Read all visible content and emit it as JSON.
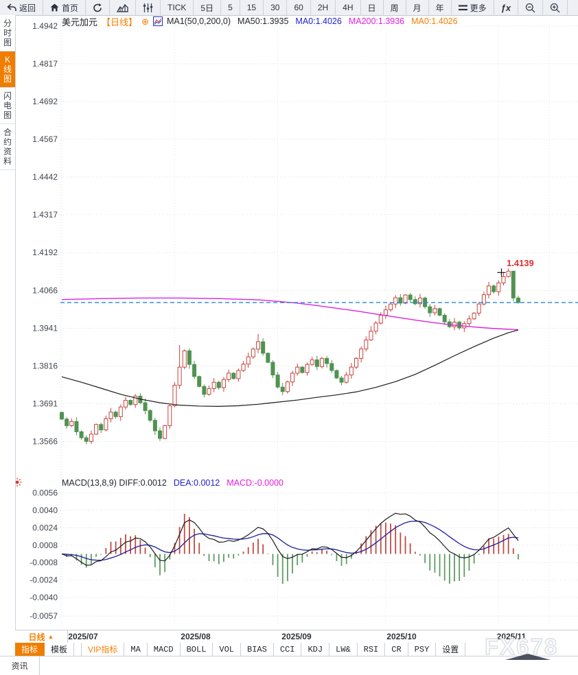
{
  "toolbar": {
    "items": [
      {
        "type": "icon-text",
        "icon": "back-icon",
        "label": "返回",
        "name": "back-button"
      },
      {
        "type": "icon-text",
        "icon": "home-icon",
        "label": "首页",
        "name": "home-button"
      },
      {
        "type": "icon",
        "icon": "refresh-icon",
        "name": "refresh-button"
      },
      {
        "type": "icon",
        "icon": "area-chart-icon",
        "name": "chart-type-line-button"
      },
      {
        "type": "icon",
        "icon": "candlestick-icon",
        "name": "chart-type-candle-button"
      },
      {
        "type": "text",
        "label": "TICK",
        "name": "period-tick-button"
      },
      {
        "type": "text",
        "label": "5日",
        "name": "period-5day-button"
      },
      {
        "type": "text",
        "label": "5",
        "name": "period-5min-button"
      },
      {
        "type": "text",
        "label": "15",
        "name": "period-15min-button"
      },
      {
        "type": "text",
        "label": "30",
        "name": "period-30min-button"
      },
      {
        "type": "text",
        "label": "60",
        "name": "period-60min-button"
      },
      {
        "type": "text",
        "label": "2H",
        "name": "period-2h-button"
      },
      {
        "type": "text",
        "label": "4H",
        "name": "period-4h-button"
      },
      {
        "type": "text",
        "label": "日",
        "name": "period-day-button"
      },
      {
        "type": "text",
        "label": "周",
        "name": "period-week-button"
      },
      {
        "type": "text",
        "label": "月",
        "name": "period-month-button"
      },
      {
        "type": "text",
        "label": "年",
        "name": "period-year-button"
      },
      {
        "type": "icon-text",
        "icon": "menu-icon",
        "label": "更多",
        "name": "more-button"
      },
      {
        "type": "icon",
        "icon": "fx-icon",
        "name": "fx-functions-button"
      },
      {
        "type": "icon",
        "icon": "zoom-out-icon",
        "name": "zoom-out-button"
      },
      {
        "type": "icon",
        "icon": "zoom-in-icon",
        "name": "zoom-in-button"
      }
    ]
  },
  "sidebar": {
    "items": [
      {
        "label": "分时图",
        "active": false,
        "name": "sidebar-item-time-chart"
      },
      {
        "label": "K线图",
        "active": true,
        "name": "sidebar-item-kline-chart"
      },
      {
        "label": "闪电图",
        "active": false,
        "name": "sidebar-item-lightning-chart"
      },
      {
        "label": "合约资料",
        "active": false,
        "name": "sidebar-item-contract-info"
      }
    ]
  },
  "chart_header": {
    "symbol": "美元加元",
    "period_tag": "【日线】",
    "plus_icon": "⊕",
    "ma_items": [
      {
        "label": "MA1(50,0,200,0)",
        "color": "#22262e"
      },
      {
        "label": "MA50:1.3935",
        "color": "#22262e"
      },
      {
        "label": "MA0:1.4026",
        "color": "#1d1dc9"
      },
      {
        "label": "MA200:1.3936",
        "color": "#e41ce4"
      },
      {
        "label": "MA0:1.4026",
        "color": "#f57f00"
      }
    ]
  },
  "indicator_header": {
    "items": [
      {
        "label": "MACD(13,8,9) DIFF:0.0012",
        "color": "#22262e"
      },
      {
        "label": "DEA:0.0012",
        "color": "#1d1dc9"
      },
      {
        "label": "MACD:-0.0000",
        "color": "#e41ce4"
      }
    ]
  },
  "price_label": "1.4139",
  "x_axis": {
    "period_selector": "日线",
    "arrow": "▲"
  },
  "bottom_tabs": [
    {
      "label": "指标",
      "style": "active",
      "name": "tab-indicator"
    },
    {
      "label": "模板",
      "style": "normal",
      "name": "tab-template"
    },
    {
      "label": "VIP指标",
      "style": "vip",
      "name": "tab-vip-indicator"
    },
    {
      "label": "MA",
      "style": "mono",
      "name": "tab-ma"
    },
    {
      "label": "MACD",
      "style": "mono",
      "name": "tab-macd"
    },
    {
      "label": "BOLL",
      "style": "mono",
      "name": "tab-boll"
    },
    {
      "label": "VOL",
      "style": "mono",
      "name": "tab-vol"
    },
    {
      "label": "BIAS",
      "style": "mono",
      "name": "tab-bias"
    },
    {
      "label": "CCI",
      "style": "mono",
      "name": "tab-cci"
    },
    {
      "label": "KDJ",
      "style": "mono",
      "name": "tab-kdj"
    },
    {
      "label": "LW&",
      "style": "mono",
      "name": "tab-lw"
    },
    {
      "label": "RSI",
      "style": "mono",
      "name": "tab-rsi"
    },
    {
      "label": "CR",
      "style": "mono",
      "name": "tab-cr"
    },
    {
      "label": "PSY",
      "style": "mono",
      "name": "tab-psy"
    },
    {
      "label": "设置",
      "style": "normal",
      "name": "tab-settings"
    }
  ],
  "watermark": "FX678",
  "status_bar": {
    "tab": "资讯"
  },
  "colors": {
    "accent_orange": "#f57f00",
    "up_red": "#c5433c",
    "down_green": "#4f9350",
    "macd_bar_red": "#bf4a42",
    "macd_bar_green": "#5d9b60",
    "ma50_black": "#1a1a1a",
    "ma200_magenta": "#dd22dd",
    "dea_blue": "#1b1b9e",
    "last_price_blue": "#2283dd",
    "alert_red": "#e23030",
    "label_red": "#e03030"
  },
  "chart_data": {
    "type": "candlestick",
    "title": "美元加元 日线 (USD/CAD daily)",
    "price_ticks": [
      1.4942,
      1.4817,
      1.4692,
      1.4567,
      1.4442,
      1.4317,
      1.4192,
      1.4066,
      1.3941,
      1.3816,
      1.3691,
      1.3566
    ],
    "macd_ticks": [
      0.0056,
      0.004,
      0.0024,
      0.0008,
      -0.0008,
      -0.0024,
      -0.004,
      -0.0057
    ],
    "months": [
      {
        "label": "2025/07",
        "index": 0,
        "center": 121
      },
      {
        "label": "2025/08",
        "index": 23,
        "center": 285
      },
      {
        "label": "2025/09",
        "index": 44,
        "center": 432
      },
      {
        "label": "2025/10",
        "index": 66,
        "center": 585
      },
      {
        "label": "2025/11",
        "index": 89,
        "center": 745
      }
    ],
    "first_open": 1.3662,
    "closes": [
      1.364,
      1.3618,
      1.3632,
      1.3598,
      1.3578,
      1.3566,
      1.359,
      1.3622,
      1.3604,
      1.3641,
      1.3663,
      1.3648,
      1.368,
      1.3702,
      1.3688,
      1.3716,
      1.3694,
      1.3668,
      1.3636,
      1.3601,
      1.3576,
      1.3618,
      1.3684,
      1.3752,
      1.3812,
      1.3866,
      1.3821,
      1.3781,
      1.3748,
      1.3722,
      1.3741,
      1.3762,
      1.3744,
      1.3771,
      1.3792,
      1.3774,
      1.3801,
      1.3822,
      1.3846,
      1.3872,
      1.3896,
      1.3858,
      1.3828,
      1.3786,
      1.3746,
      1.3731,
      1.3763,
      1.3792,
      1.3812,
      1.3794,
      1.3821,
      1.3836,
      1.3814,
      1.3841,
      1.3824,
      1.3801,
      1.3776,
      1.3762,
      1.3786,
      1.3812,
      1.3841,
      1.3872,
      1.3902,
      1.3931,
      1.3958,
      1.3984,
      1.4002,
      1.4021,
      1.4042,
      1.4024,
      1.4051,
      1.4036,
      1.4022,
      1.4041,
      1.4012,
      1.3992,
      1.4006,
      1.3984,
      1.3962,
      1.3946,
      1.3961,
      1.3942,
      1.3956,
      1.3972,
      1.3991,
      1.4021,
      1.4052,
      1.4081,
      1.4062,
      1.4091,
      1.4112,
      1.413,
      1.4041,
      1.4026
    ],
    "wick_overrides": {
      "5": {
        "low": 1.3556
      },
      "24": {
        "high": 1.3885
      },
      "40": {
        "high": 1.3922
      },
      "63": {
        "high": 1.3948
      },
      "91": {
        "high": 1.4139
      },
      "92": {
        "high": 1.4129
      },
      "93": {
        "high": 1.4049
      }
    },
    "session_high": 1.4139,
    "last_price": 1.4026,
    "ma50_value": 1.3935,
    "ma200_value": 1.3936,
    "macd_params": {
      "diff": 0.0012,
      "dea": 0.0012,
      "macd": -0.0
    },
    "ma50_points": [
      [
        0,
        1.378
      ],
      [
        4,
        1.3762
      ],
      [
        8,
        1.3742
      ],
      [
        12,
        1.3722
      ],
      [
        16,
        1.3706
      ],
      [
        20,
        1.3694
      ],
      [
        24,
        1.3686
      ],
      [
        28,
        1.3683
      ],
      [
        32,
        1.3682
      ],
      [
        36,
        1.3684
      ],
      [
        40,
        1.3689
      ],
      [
        44,
        1.3696
      ],
      [
        48,
        1.3703
      ],
      [
        52,
        1.3712
      ],
      [
        56,
        1.372
      ],
      [
        60,
        1.373
      ],
      [
        64,
        1.3745
      ],
      [
        68,
        1.3764
      ],
      [
        72,
        1.3788
      ],
      [
        76,
        1.3818
      ],
      [
        80,
        1.385
      ],
      [
        84,
        1.388
      ],
      [
        88,
        1.3908
      ],
      [
        91,
        1.3926
      ],
      [
        93,
        1.3935
      ]
    ],
    "ma200_points": [
      [
        0,
        1.4036
      ],
      [
        8,
        1.4039
      ],
      [
        16,
        1.4041
      ],
      [
        24,
        1.4041
      ],
      [
        32,
        1.4039
      ],
      [
        40,
        1.4035
      ],
      [
        44,
        1.403
      ],
      [
        48,
        1.4024
      ],
      [
        52,
        1.4016
      ],
      [
        56,
        1.4007
      ],
      [
        60,
        1.3998
      ],
      [
        64,
        1.3988
      ],
      [
        68,
        1.3978
      ],
      [
        72,
        1.3968
      ],
      [
        76,
        1.3959
      ],
      [
        80,
        1.3951
      ],
      [
        84,
        1.3945
      ],
      [
        88,
        1.394
      ],
      [
        93,
        1.3936
      ]
    ],
    "extra_vgrid": [
      800
    ],
    "cross_marker_index": 90
  }
}
